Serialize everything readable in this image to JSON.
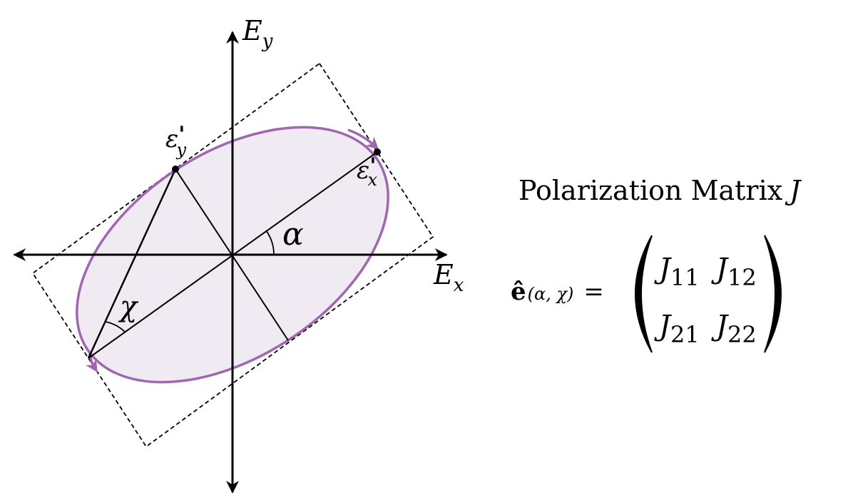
{
  "diagram": {
    "axis_x_label": "E",
    "axis_x_sub": "x",
    "axis_y_label": "E",
    "axis_y_sub": "y",
    "point_x_label": "ε",
    "point_x_prime": "'",
    "point_x_sub": "x",
    "point_y_label": "ε",
    "point_y_prime": "'",
    "point_y_sub": "y",
    "angle_alpha": "α",
    "angle_chi": "χ",
    "colors": {
      "ellipse_stroke": "#a066b0",
      "ellipse_fill": "#f0eaf2",
      "lines": "#000000"
    }
  },
  "formula": {
    "title_prefix": "Polarization Matrix",
    "title_symbol": "J",
    "lhs_vector": "ê",
    "lhs_args": "(α, χ)",
    "equals": "=",
    "matrix": [
      [
        {
          "base": "J",
          "sub": "11"
        },
        {
          "base": "J",
          "sub": "12"
        }
      ],
      [
        {
          "base": "J",
          "sub": "21"
        },
        {
          "base": "J",
          "sub": "22"
        }
      ]
    ]
  }
}
